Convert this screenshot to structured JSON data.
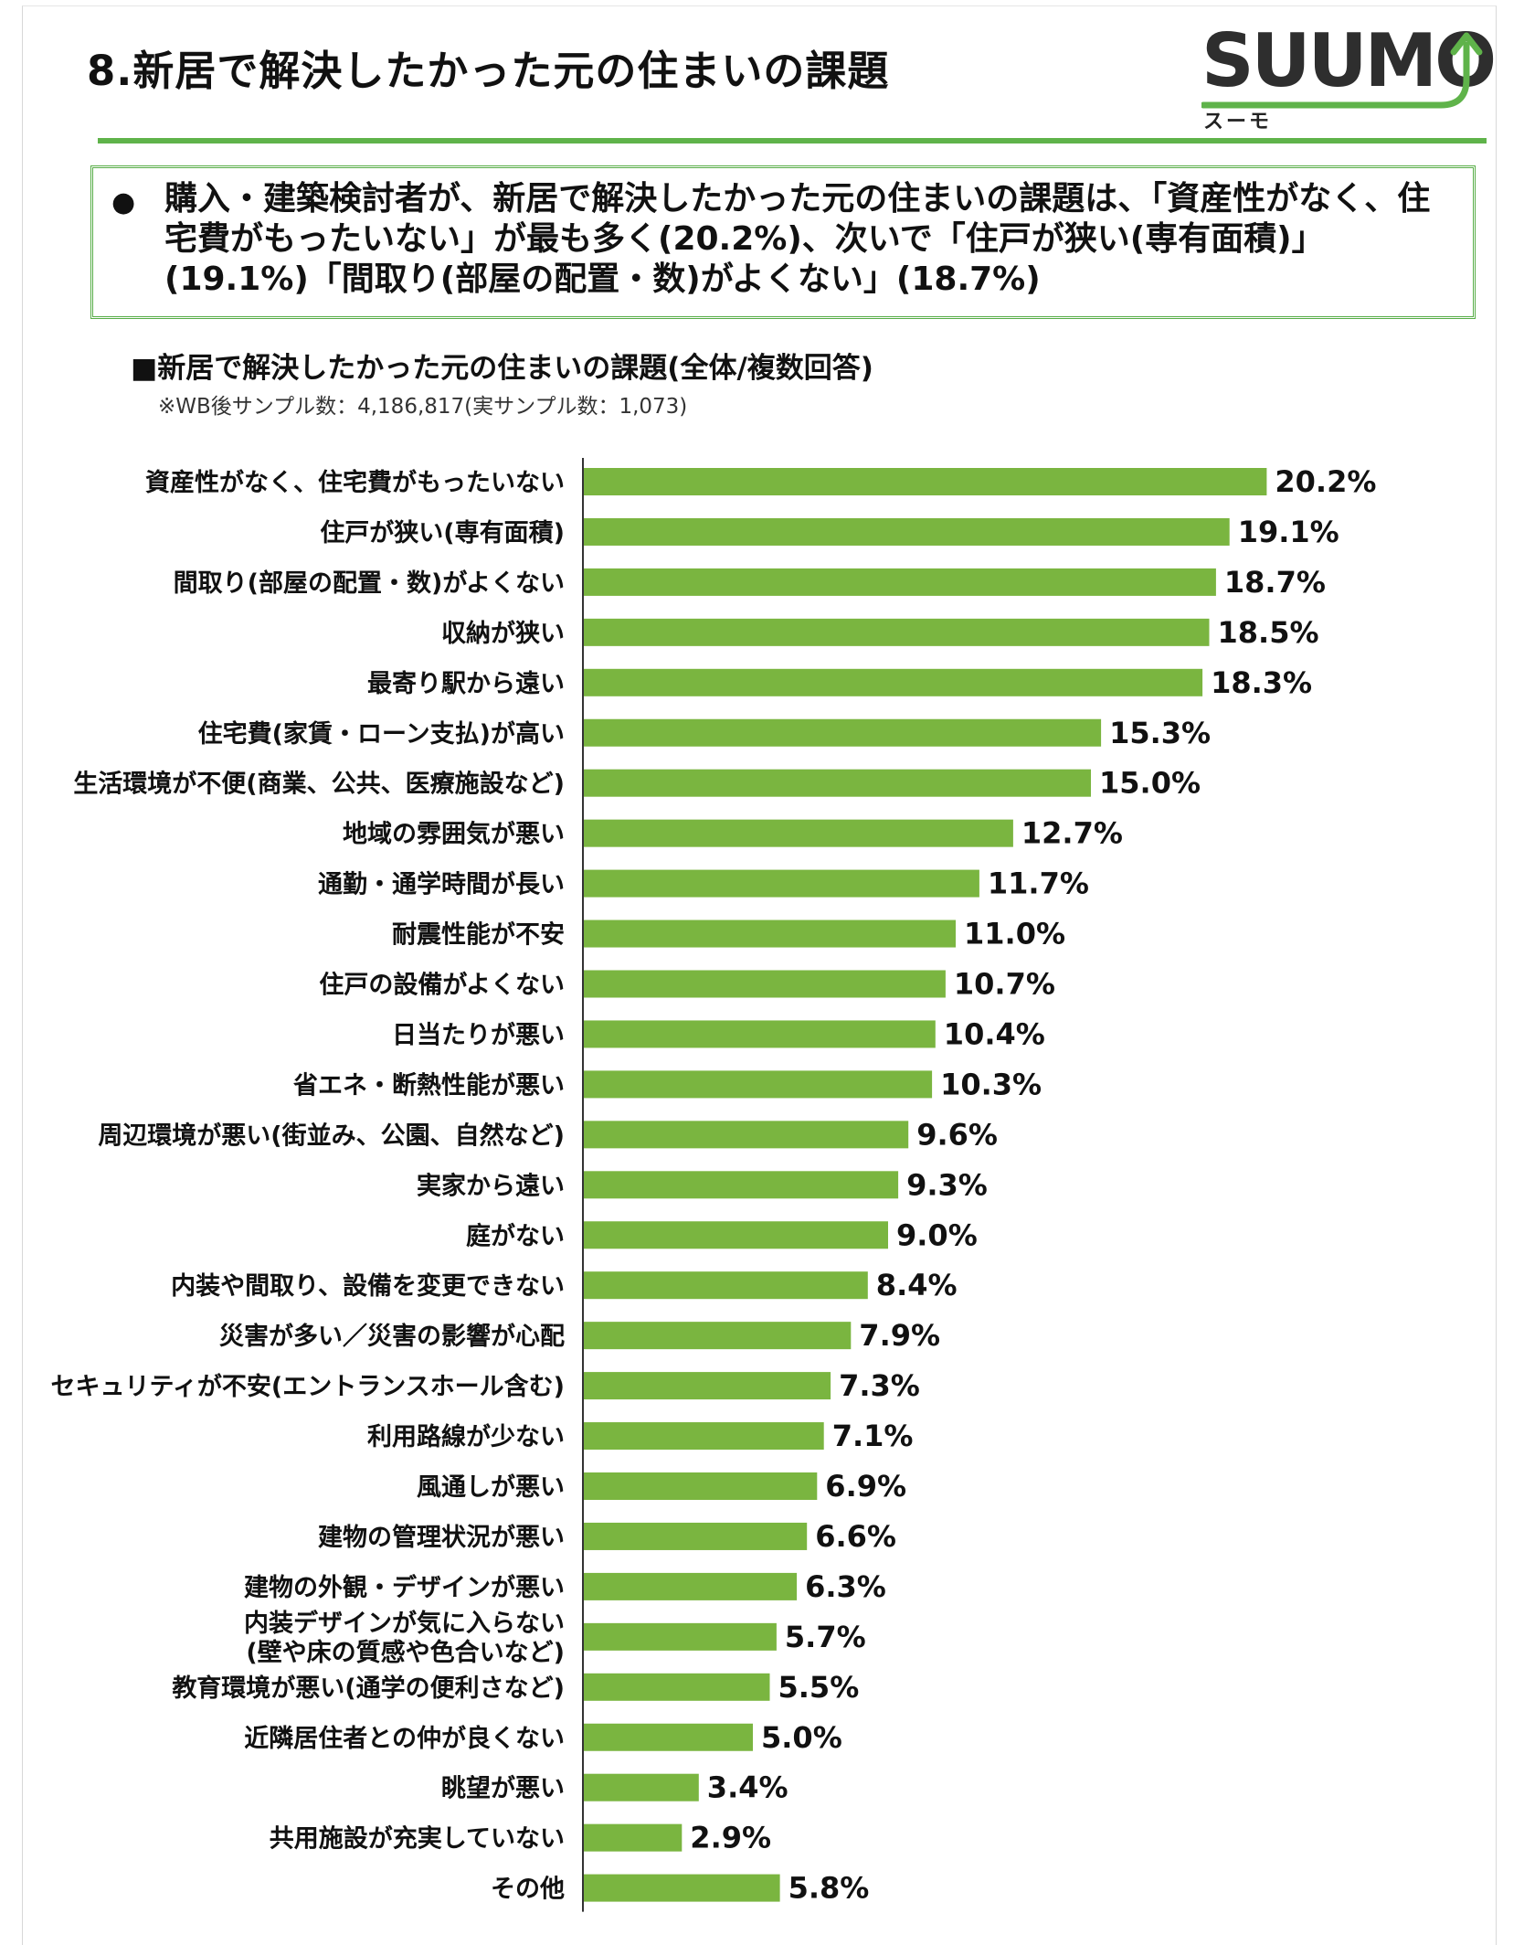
{
  "page": {
    "title": "8.新居で解決したかった元の住まいの課題"
  },
  "logo": {
    "wordmark": "SUUMO",
    "subtitle": "スーモ",
    "arrow_color": "#5fb34a"
  },
  "summary": {
    "bullet": "●",
    "text": "購入・建築検討者が、新居で解決したかった元の住まいの課題は、「資産性がなく、住宅費がもったいない」が最も多く(20.2%)、次いで「住戸が狭い(専有面積)」(19.1%)「間取り(部屋の配置・数)がよくない」(18.7%)"
  },
  "chart_heading": "■新居で解決したかった元の住まいの課題(全体/複数回答)",
  "chart_note": "※WB後サンプル数：4,186,817(実サンプル数：1,073)",
  "colors": {
    "bar": "#7ab540",
    "accent_rule": "#5fb34a",
    "box_border": "#57ad47"
  },
  "chart_data": {
    "type": "bar",
    "orientation": "horizontal",
    "unit": "%",
    "grid": false,
    "categories": [
      "資産性がなく、住宅費がもったいない",
      "住戸が狭い(専有面積)",
      "間取り(部屋の配置・数)がよくない",
      "収納が狭い",
      "最寄り駅から遠い",
      "住宅費(家賃・ローン支払)が高い",
      "生活環境が不便(商業、公共、医療施設など)",
      "地域の雰囲気が悪い",
      "通勤・通学時間が長い",
      "耐震性能が不安",
      "住戸の設備がよくない",
      "日当たりが悪い",
      "省エネ・断熱性能が悪い",
      "周辺環境が悪い(街並み、公園、自然など)",
      "実家から遠い",
      "庭がない",
      "内装や間取り、設備を変更できない",
      "災害が多い／災害の影響が心配",
      "セキュリティが不安(エントランスホール含む)",
      "利用路線が少ない",
      "風通しが悪い",
      "建物の管理状況が悪い",
      "建物の外観・デザインが悪い",
      "内装デザインが気に入らない\n(壁や床の質感や色合いなど)",
      "教育環境が悪い(通学の便利さなど)",
      "近隣居住者との仲が良くない",
      "眺望が悪い",
      "共用施設が充実していない",
      "その他"
    ],
    "values": [
      20.2,
      19.1,
      18.7,
      18.5,
      18.3,
      15.3,
      15.0,
      12.7,
      11.7,
      11.0,
      10.7,
      10.4,
      10.3,
      9.6,
      9.3,
      9.0,
      8.4,
      7.9,
      7.3,
      7.1,
      6.9,
      6.6,
      6.3,
      5.7,
      5.5,
      5.0,
      3.4,
      2.9,
      5.8
    ],
    "value_labels": [
      "20.2%",
      "19.1%",
      "18.7%",
      "18.5%",
      "18.3%",
      "15.3%",
      "15.0%",
      "12.7%",
      "11.7%",
      "11.0%",
      "10.7%",
      "10.4%",
      "10.3%",
      "9.6%",
      "9.3%",
      "9.0%",
      "8.4%",
      "7.9%",
      "7.3%",
      "7.1%",
      "6.9%",
      "6.6%",
      "6.3%",
      "5.7%",
      "5.5%",
      "5.0%",
      "3.4%",
      "2.9%",
      "5.8%"
    ]
  }
}
